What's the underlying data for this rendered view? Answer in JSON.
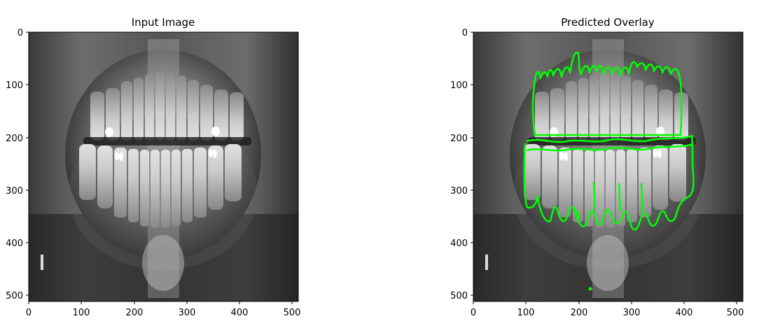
{
  "panels": [
    {
      "title": "Input Image",
      "x_ticks": [
        "0",
        "100",
        "200",
        "300",
        "400",
        "500"
      ],
      "y_ticks": [
        "0",
        "100",
        "200",
        "300",
        "400",
        "500"
      ],
      "x_range": [
        0,
        512
      ],
      "y_range": [
        0,
        512
      ],
      "image_content": "panoramic dental x-ray (grayscale)"
    },
    {
      "title": "Predicted Overlay",
      "x_ticks": [
        "0",
        "100",
        "200",
        "300",
        "400",
        "500"
      ],
      "y_ticks": [
        "0",
        "100",
        "200",
        "300",
        "400",
        "500"
      ],
      "x_range": [
        0,
        512
      ],
      "y_range": [
        0,
        512
      ],
      "image_content": "panoramic dental x-ray with green predicted tooth segmentation contours",
      "overlay_color": "#00ff00"
    }
  ]
}
